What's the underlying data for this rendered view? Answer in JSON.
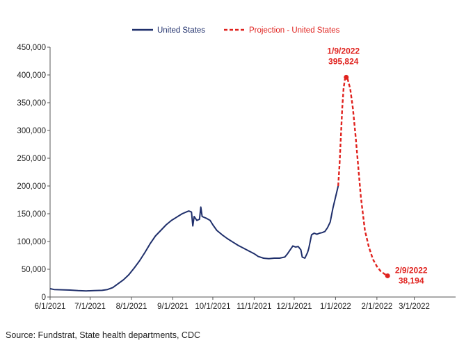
{
  "chart_data": {
    "type": "line",
    "title": "",
    "xlabel": "",
    "ylabel": "",
    "ylim": [
      0,
      450000
    ],
    "y_ticks": [
      0,
      50000,
      100000,
      150000,
      200000,
      250000,
      300000,
      350000,
      400000,
      450000
    ],
    "y_tick_labels": [
      "0",
      "50,000",
      "100,000",
      "150,000",
      "200,000",
      "250,000",
      "300,000",
      "350,000",
      "400,000",
      "450,000"
    ],
    "xlim": [
      "2021-06-01",
      "2022-04-01"
    ],
    "x_ticks": [
      "2021-06-01",
      "2021-07-01",
      "2021-08-01",
      "2021-09-01",
      "2021-10-01",
      "2021-11-01",
      "2021-12-01",
      "2022-01-01",
      "2022-02-01",
      "2022-03-01"
    ],
    "x_tick_labels": [
      "6/1/2021",
      "7/1/2021",
      "8/1/2021",
      "9/1/2021",
      "10/1/2021",
      "11/1/2021",
      "12/1/2021",
      "1/1/2022",
      "2/1/2022",
      "3/1/2022"
    ],
    "legend_position": "top",
    "grid": false,
    "series": [
      {
        "name": "United States",
        "color": "#1f2f6b",
        "style": "solid",
        "points": [
          [
            "2021-06-01",
            15000
          ],
          [
            "2021-06-04",
            13500
          ],
          [
            "2021-06-10",
            13000
          ],
          [
            "2021-06-16",
            12500
          ],
          [
            "2021-06-22",
            11500
          ],
          [
            "2021-06-28",
            11000
          ],
          [
            "2021-07-04",
            11500
          ],
          [
            "2021-07-10",
            12000
          ],
          [
            "2021-07-14",
            13500
          ],
          [
            "2021-07-18",
            17000
          ],
          [
            "2021-07-22",
            24000
          ],
          [
            "2021-07-26",
            31000
          ],
          [
            "2021-07-30",
            40000
          ],
          [
            "2021-08-03",
            52000
          ],
          [
            "2021-08-07",
            65000
          ],
          [
            "2021-08-11",
            80000
          ],
          [
            "2021-08-15",
            96000
          ],
          [
            "2021-08-19",
            110000
          ],
          [
            "2021-08-23",
            120000
          ],
          [
            "2021-08-27",
            130000
          ],
          [
            "2021-08-31",
            138000
          ],
          [
            "2021-09-04",
            144000
          ],
          [
            "2021-09-08",
            150000
          ],
          [
            "2021-09-11",
            153000
          ],
          [
            "2021-09-13",
            155000
          ],
          [
            "2021-09-15",
            153000
          ],
          [
            "2021-09-16",
            128000
          ],
          [
            "2021-09-17",
            145000
          ],
          [
            "2021-09-19",
            138000
          ],
          [
            "2021-09-21",
            140000
          ],
          [
            "2021-09-22",
            162000
          ],
          [
            "2021-09-23",
            145000
          ],
          [
            "2021-09-26",
            142000
          ],
          [
            "2021-09-29",
            138000
          ],
          [
            "2021-10-01",
            130000
          ],
          [
            "2021-10-04",
            120000
          ],
          [
            "2021-10-08",
            112000
          ],
          [
            "2021-10-12",
            105000
          ],
          [
            "2021-10-16",
            99000
          ],
          [
            "2021-10-20",
            93000
          ],
          [
            "2021-10-24",
            88000
          ],
          [
            "2021-10-28",
            83000
          ],
          [
            "2021-11-01",
            78000
          ],
          [
            "2021-11-04",
            73000
          ],
          [
            "2021-11-08",
            70000
          ],
          [
            "2021-11-12",
            69000
          ],
          [
            "2021-11-16",
            70000
          ],
          [
            "2021-11-20",
            70000
          ],
          [
            "2021-11-24",
            72000
          ],
          [
            "2021-11-26",
            78000
          ],
          [
            "2021-11-28",
            85000
          ],
          [
            "2021-11-30",
            92000
          ],
          [
            "2021-12-02",
            90000
          ],
          [
            "2021-12-04",
            91000
          ],
          [
            "2021-12-06",
            85000
          ],
          [
            "2021-12-07",
            72000
          ],
          [
            "2021-12-09",
            70000
          ],
          [
            "2021-12-11",
            80000
          ],
          [
            "2021-12-12",
            88000
          ],
          [
            "2021-12-14",
            112000
          ],
          [
            "2021-12-16",
            115000
          ],
          [
            "2021-12-18",
            113000
          ],
          [
            "2021-12-20",
            115000
          ],
          [
            "2021-12-22",
            116000
          ],
          [
            "2021-12-24",
            118000
          ],
          [
            "2021-12-26",
            125000
          ],
          [
            "2021-12-28",
            135000
          ],
          [
            "2021-12-30",
            160000
          ],
          [
            "2022-01-01",
            180000
          ],
          [
            "2022-01-03",
            200000
          ]
        ]
      },
      {
        "name": "Projection - United States",
        "color": "#e0221e",
        "style": "dashed",
        "points": [
          [
            "2022-01-03",
            200000
          ],
          [
            "2022-01-04",
            240000
          ],
          [
            "2022-01-05",
            290000
          ],
          [
            "2022-01-06",
            340000
          ],
          [
            "2022-01-07",
            375000
          ],
          [
            "2022-01-08",
            392000
          ],
          [
            "2022-01-09",
            395824
          ],
          [
            "2022-01-10",
            393000
          ],
          [
            "2022-01-12",
            375000
          ],
          [
            "2022-01-14",
            340000
          ],
          [
            "2022-01-16",
            290000
          ],
          [
            "2022-01-18",
            235000
          ],
          [
            "2022-01-20",
            180000
          ],
          [
            "2022-01-23",
            120000
          ],
          [
            "2022-01-26",
            90000
          ],
          [
            "2022-01-29",
            68000
          ],
          [
            "2022-02-01",
            55000
          ],
          [
            "2022-02-04",
            46000
          ],
          [
            "2022-02-07",
            41000
          ],
          [
            "2022-02-09",
            38194
          ]
        ]
      }
    ],
    "annotations": [
      {
        "date": "2022-01-09",
        "value": 395824,
        "label_date": "1/9/2022",
        "label_value": "395,824",
        "color": "#e0221e"
      },
      {
        "date": "2022-02-09",
        "value": 38194,
        "label_date": "2/9/2022",
        "label_value": "38,194",
        "color": "#e0221e"
      }
    ]
  },
  "source_text": "Source: Fundstrat, State health departments, CDC"
}
